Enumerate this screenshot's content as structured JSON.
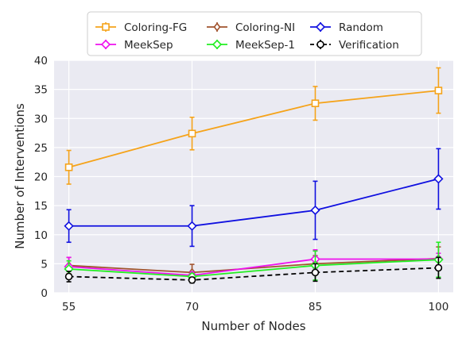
{
  "chart_data": {
    "type": "line",
    "title": "",
    "xlabel": "Number of Nodes",
    "ylabel": "Number of Interventions",
    "x": [
      55,
      70,
      85,
      100
    ],
    "x_tick_labels": [
      "55",
      "70",
      "85",
      "100"
    ],
    "ylim": [
      0,
      40
    ],
    "y_ticks": [
      0,
      5,
      10,
      15,
      20,
      25,
      30,
      35,
      40
    ],
    "grid": true,
    "legend_position": "top",
    "series": [
      {
        "name": "Coloring-FG",
        "color": "#f5a31a",
        "marker": "square",
        "dashed": false,
        "values": [
          21.6,
          27.4,
          32.6,
          34.8
        ],
        "error": [
          2.9,
          2.8,
          2.9,
          3.9
        ]
      },
      {
        "name": "Coloring-NI",
        "color": "#a0522d",
        "marker": "diamond-thin",
        "dashed": false,
        "values": [
          4.7,
          3.5,
          5.0,
          5.9
        ],
        "error": [
          1.4,
          1.4,
          1.4,
          2.0
        ]
      },
      {
        "name": "Random",
        "color": "#1010e0",
        "marker": "diamond",
        "dashed": false,
        "values": [
          11.5,
          11.5,
          14.2,
          19.6
        ],
        "error": [
          2.8,
          3.5,
          5.0,
          5.2
        ]
      },
      {
        "name": "MeekSep",
        "color": "#ee11ee",
        "marker": "diamond",
        "dashed": false,
        "values": [
          4.5,
          3.0,
          5.8,
          5.8
        ],
        "error": [
          1.6,
          0.6,
          1.6,
          1.0
        ]
      },
      {
        "name": "MeekSep-1",
        "color": "#22ee22",
        "marker": "diamond",
        "dashed": false,
        "values": [
          4.1,
          2.8,
          4.7,
          5.7
        ],
        "error": [
          1.4,
          0.5,
          2.5,
          3.0
        ]
      },
      {
        "name": "Verification",
        "color": "#000000",
        "marker": "circle",
        "dashed": true,
        "values": [
          2.8,
          2.2,
          3.5,
          4.3
        ],
        "error": [
          0.9,
          0.5,
          1.5,
          1.8
        ]
      }
    ]
  }
}
